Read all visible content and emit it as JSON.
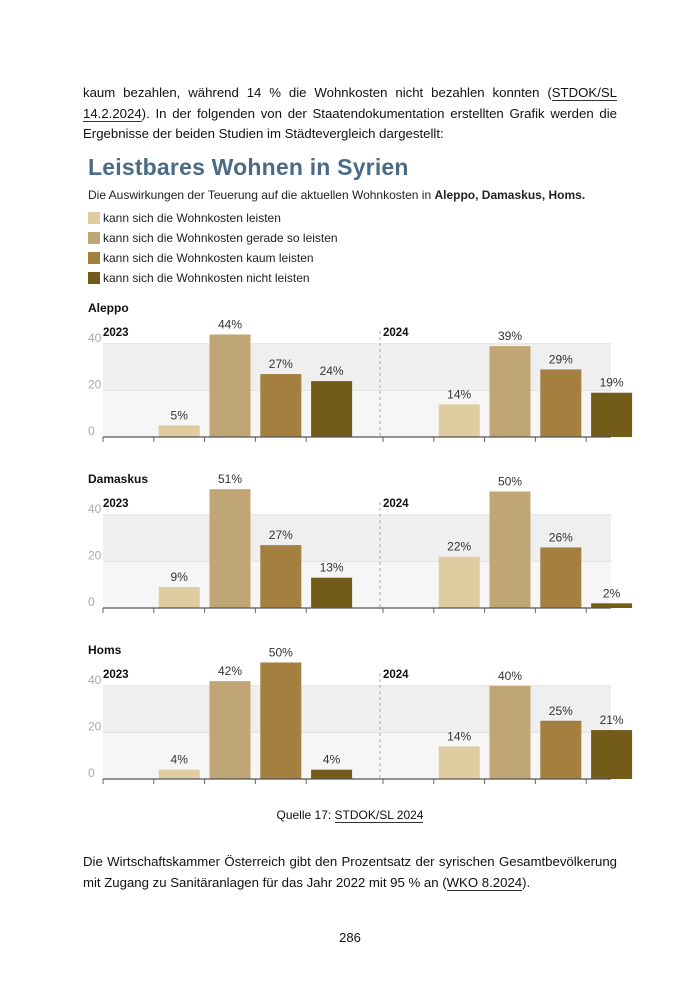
{
  "paragraph_top": {
    "text_before": "kaum bezahlen, während 14 % die Wohnkosten nicht bezahlen konnten (",
    "ref": "STDOK/SL 14.2.2024",
    "text_after": "). In der folgenden von der Staatendokumentation erstellten Grafik werden die Ergebnisse der beiden Studien im Städtevergleich dargestellt:"
  },
  "figure": {
    "title": "Leistbares Wohnen in Syrien",
    "subtitle_prefix": "Die Auswirkungen der Teuerung auf die aktuellen Wohnkosten in ",
    "subtitle_bold": "Aleppo, Damaskus, Homs.",
    "legend": [
      {
        "label": "kann sich die Wohnkosten leisten",
        "color": "#dfcca1"
      },
      {
        "label": "kann sich die Wohnkosten gerade so leisten",
        "color": "#c0a675"
      },
      {
        "label": "kann sich die Wohnkosten kaum leisten",
        "color": "#a47f3f"
      },
      {
        "label": "kann sich die Wohnkosten nicht leisten",
        "color": "#735b1a"
      }
    ]
  },
  "chart_data": {
    "type": "bar",
    "title": "Leistbares Wohnen in Syrien",
    "ylim": [
      0,
      45
    ],
    "yticks": [
      0,
      20,
      40
    ],
    "series_names": [
      "kann sich die Wohnkosten leisten",
      "kann sich die Wohnkosten gerade so leisten",
      "kann sich die Wohnkosten kaum leisten",
      "kann sich die Wohnkosten nicht leisten"
    ],
    "cities": [
      {
        "name": "Aleppo",
        "years": [
          {
            "year": "2023",
            "values": [
              null,
              5,
              44,
              27,
              24
            ],
            "labels": [
              "",
              "5%",
              "44%",
              "27%",
              "24%"
            ]
          },
          {
            "year": "2024",
            "values": [
              null,
              14,
              39,
              29,
              19
            ],
            "labels": [
              "",
              "14%",
              "39%",
              "29%",
              "19%"
            ]
          }
        ]
      },
      {
        "name": "Damaskus",
        "years": [
          {
            "year": "2023",
            "values": [
              null,
              9,
              51,
              27,
              13
            ],
            "labels": [
              "",
              "9%",
              "51%",
              "27%",
              "13%"
            ]
          },
          {
            "year": "2024",
            "values": [
              null,
              22,
              50,
              26,
              2
            ],
            "labels": [
              "",
              "22%",
              "50%",
              "26%",
              "2%"
            ]
          }
        ]
      },
      {
        "name": "Homs",
        "years": [
          {
            "year": "2023",
            "values": [
              null,
              4,
              42,
              50,
              4
            ],
            "labels": [
              "",
              "4%",
              "42%",
              "50%",
              "4%"
            ]
          },
          {
            "year": "2024",
            "values": [
              null,
              14,
              40,
              25,
              21
            ],
            "labels": [
              "",
              "14%",
              "40%",
              "25%",
              "21%"
            ]
          }
        ]
      }
    ],
    "slot_colors": [
      "#dfcca1",
      "#dfcca1",
      "#c0a675",
      "#a47f3f",
      "#735b1a"
    ]
  },
  "caption": {
    "prefix": "Quelle 17: ",
    "ref": "STDOK/SL 2024"
  },
  "paragraph_bottom": {
    "text_before": "Die Wirtschaftskammer Österreich gibt den Prozentsatz der syrischen Gesamtbevölkerung mit Zugang zu Sanitäranlagen für das Jahr 2022 mit 95 % an (",
    "ref": "WKO 8.2024",
    "text_after": ")."
  },
  "page_number": "286"
}
